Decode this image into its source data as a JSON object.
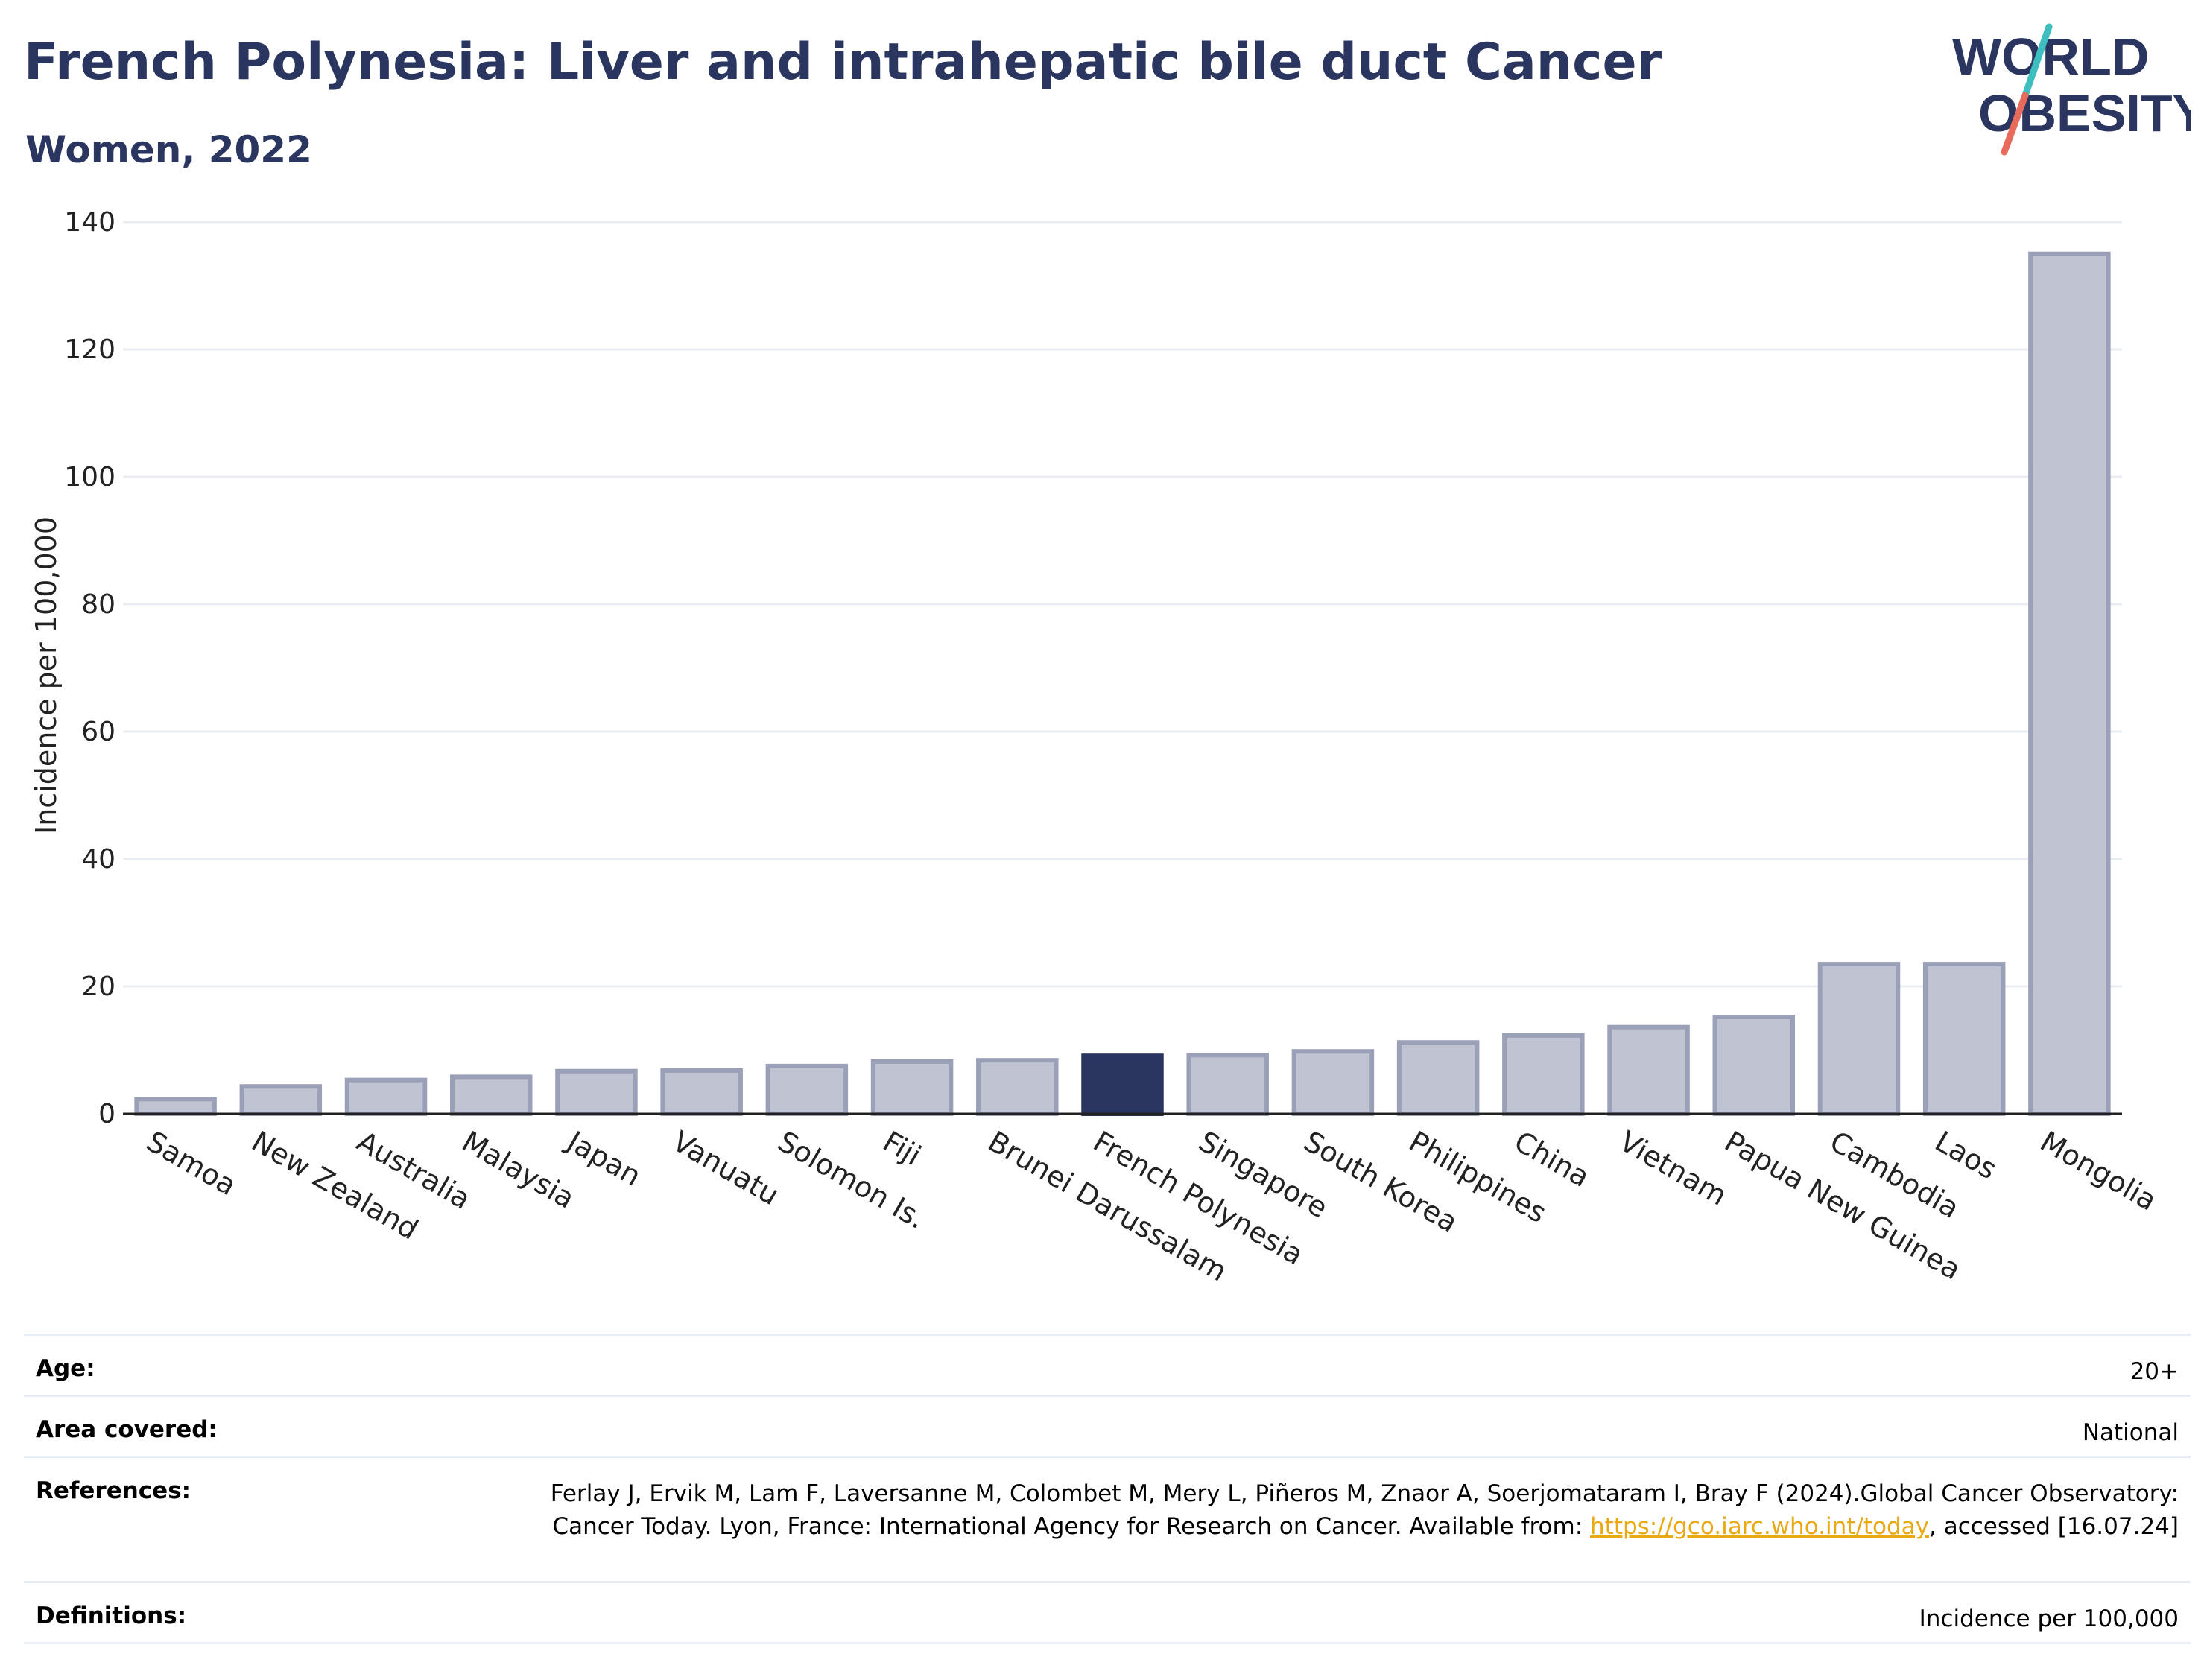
{
  "header": {
    "title": "French Polynesia: Liver and intrahepatic bile duct Cancer",
    "subtitle": "Women, 2022"
  },
  "logo": {
    "line1": "WORLD",
    "line2": "OBESITY",
    "colors": {
      "text": "#2a3560",
      "slash_top": "#3dbfc0",
      "slash_bottom": "#e86a5a"
    }
  },
  "chart_data": {
    "type": "bar",
    "ylabel": "Incidence per 100,000",
    "ylim": [
      0,
      140
    ],
    "yticks": [
      0,
      20,
      40,
      60,
      80,
      100,
      120,
      140
    ],
    "grid": true,
    "categories": [
      "Samoa",
      "New Zealand",
      "Australia",
      "Malaysia",
      "Japan",
      "Vanuatu",
      "Solomon Is.",
      "Fiji",
      "Brunei Darussalam",
      "French Polynesia",
      "Singapore",
      "South Korea",
      "Philippines",
      "China",
      "Vietnam",
      "Papua New Guinea",
      "Cambodia",
      "Laos",
      "Mongolia"
    ],
    "values": [
      2.3,
      4.3,
      5.3,
      5.8,
      6.7,
      6.8,
      7.5,
      8.2,
      8.4,
      9.1,
      9.2,
      9.8,
      11.2,
      12.3,
      13.6,
      15.2,
      23.5,
      23.5,
      135
    ],
    "highlight": "French Polynesia",
    "colors": {
      "bar": "#c0c3d1",
      "bar_border": "#9aa0b8",
      "highlight": "#2a3560",
      "grid": "#e9ecf2",
      "axis": "#222222"
    }
  },
  "info": {
    "age_label": "Age:",
    "age_value": "20+",
    "area_label": "Area covered:",
    "area_value": "National",
    "references_label": "References:",
    "references_text_1": "Ferlay J, Ervik M, Lam F, Laversanne M, Colombet M, Mery L, Piñeros M, Znaor A, Soerjomataram I, Bray F (2024).Global Cancer Observatory: Cancer Today. Lyon, France: International Agency for Research on Cancer. Available from: ",
    "references_link": "https://gco.iarc.who.int/today",
    "references_text_2": ", accessed [16.07.24]",
    "definitions_label": "Definitions:",
    "definitions_value": "Incidence per 100,000"
  }
}
